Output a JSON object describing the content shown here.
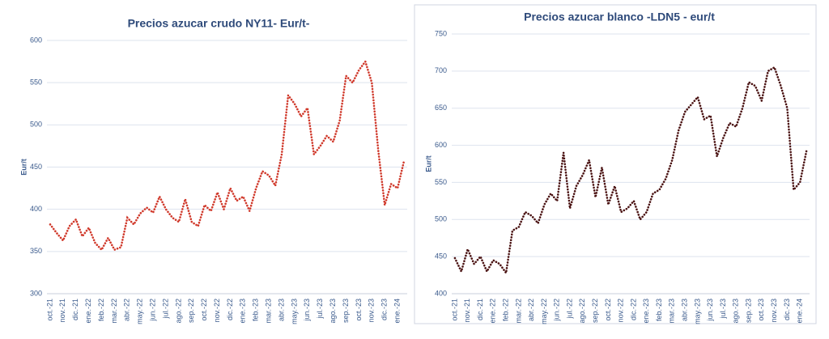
{
  "chart_data": [
    {
      "type": "line",
      "title": "Precios azucar crudo NY11- Eur/t-",
      "y_label": "Eur/t",
      "color": "#d0392b",
      "categories": [
        "oct.-21",
        null,
        "nov.-21",
        null,
        "dic.-21",
        null,
        "ene.-22",
        null,
        "feb.-22",
        null,
        "mar.-22",
        null,
        "abr.-22",
        null,
        "may.-22",
        null,
        "jun.-22",
        null,
        "jul.-22",
        null,
        "ago.-22",
        null,
        "sep.-22",
        null,
        "oct.-22",
        null,
        "nov.-22",
        null,
        "dic.-22",
        null,
        "ene.-23",
        null,
        "feb.-23",
        null,
        "mar.-23",
        null,
        "abr.-23",
        null,
        "may.-23",
        null,
        "jun.-23",
        null,
        "jul.-23",
        null,
        "ago.-23",
        null,
        "sep.-23",
        null,
        "oct.-23",
        null,
        "nov.-23",
        null,
        "dic.-23",
        null,
        "ene.-24",
        null
      ],
      "values": [
        382,
        372,
        363,
        380,
        388,
        368,
        378,
        360,
        352,
        366,
        352,
        355,
        390,
        382,
        395,
        402,
        396,
        415,
        400,
        390,
        385,
        412,
        385,
        380,
        405,
        398,
        420,
        400,
        425,
        410,
        415,
        398,
        425,
        445,
        440,
        428,
        465,
        535,
        525,
        510,
        520,
        465,
        475,
        487,
        480,
        505,
        558,
        550,
        565,
        575,
        550,
        470,
        405,
        430,
        425,
        457
      ],
      "ylim": [
        300,
        600
      ],
      "yticks": [
        300,
        350,
        400,
        450,
        500,
        550,
        600
      ],
      "grid": true
    },
    {
      "type": "line",
      "title": "Precios azucar blanco -LDN5 - eur/t",
      "y_label": "Eur/t",
      "color": "#4a1212",
      "categories": [
        "oct.-21",
        null,
        "nov.-21",
        null,
        "dic.-21",
        null,
        "ene.-22",
        null,
        "feb.-22",
        null,
        "mar.-22",
        null,
        "abr.-22",
        null,
        "may.-22",
        null,
        "jun.-22",
        null,
        "jul.-22",
        null,
        "ago.-22",
        null,
        "sep.-22",
        null,
        "oct.-22",
        null,
        "nov.-22",
        null,
        "dic.-22",
        null,
        "ene.-23",
        null,
        "feb.-23",
        null,
        "mar.-23",
        null,
        "abr.-23",
        null,
        "may.-23",
        null,
        "jun.-23",
        null,
        "jul.-23",
        null,
        "ago.-23",
        null,
        "sep.-23",
        null,
        "oct.-23",
        null,
        "nov.-23",
        null,
        "dic.-23",
        null,
        "ene.-24",
        null
      ],
      "values": [
        448,
        430,
        460,
        440,
        450,
        430,
        445,
        440,
        428,
        485,
        490,
        510,
        505,
        495,
        520,
        535,
        525,
        590,
        515,
        545,
        560,
        580,
        530,
        570,
        520,
        545,
        510,
        515,
        525,
        500,
        510,
        535,
        540,
        555,
        580,
        620,
        645,
        655,
        665,
        635,
        640,
        585,
        610,
        630,
        625,
        650,
        685,
        680,
        660,
        700,
        705,
        680,
        650,
        540,
        550,
        592
      ],
      "ylim": [
        400,
        750
      ],
      "yticks": [
        400,
        450,
        500,
        550,
        600,
        650,
        700,
        750
      ],
      "grid": true
    }
  ]
}
